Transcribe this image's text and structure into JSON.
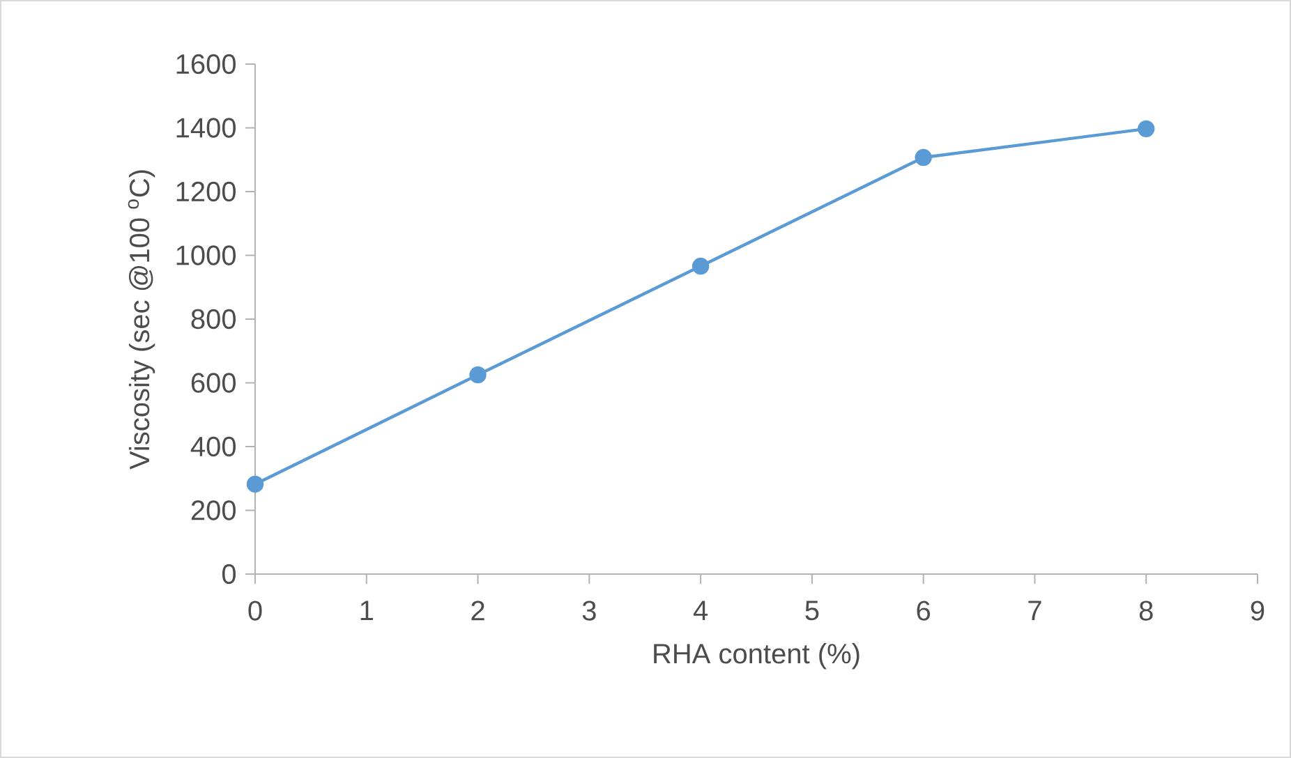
{
  "chart_data": {
    "type": "line",
    "xlabel": "RHA content (%)",
    "ylabel": "Viscosity (sec @100 $^{o}$C)",
    "x": [
      0,
      2,
      4,
      6,
      8
    ],
    "series": [
      {
        "color": "#5b9bd5",
        "values": [
          282,
          625,
          966,
          1307,
          1397
        ]
      }
    ],
    "xlim": [
      0,
      9
    ],
    "xticks": [
      0,
      1,
      2,
      3,
      4,
      5,
      6,
      7,
      8,
      9
    ],
    "ylim": [
      0,
      1600
    ],
    "yticks": [
      0,
      200,
      400,
      600,
      800,
      1000,
      1200,
      1400,
      1600
    ],
    "grid": false,
    "marker": "circle",
    "line_style": "solid"
  }
}
